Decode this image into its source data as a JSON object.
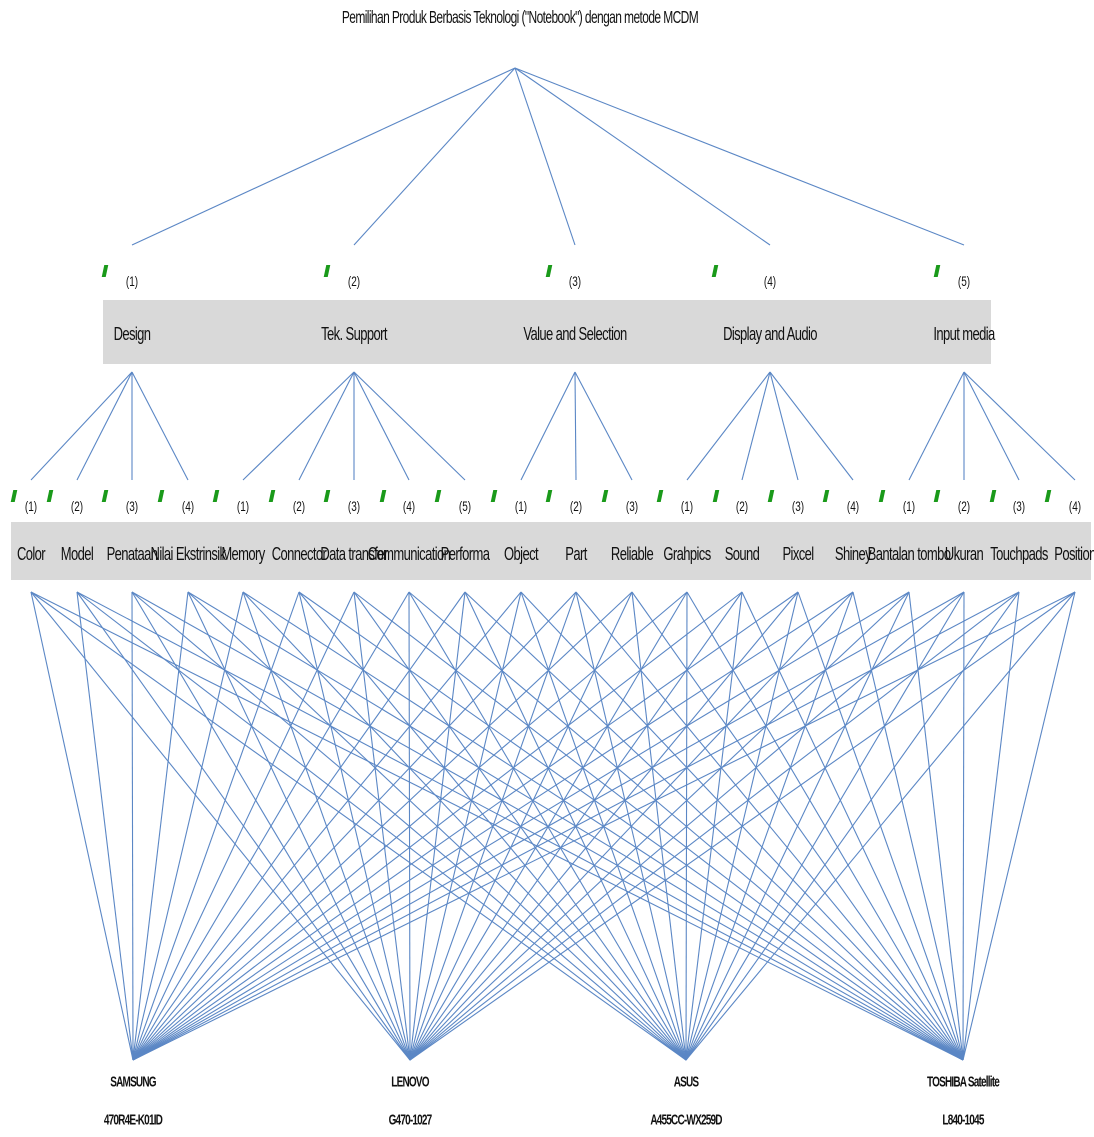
{
  "title": "Pemilihan Produk Berbasis Teknologi (\"Notebook\") dengan metode MCDM",
  "criteria": [
    {
      "num": "(1)",
      "label": "Design",
      "sub": [
        {
          "num": "(1)",
          "label": "Color"
        },
        {
          "num": "(2)",
          "label": "Model"
        },
        {
          "num": "(3)",
          "label": "Penataan"
        },
        {
          "num": "(4)",
          "label": "Nilai Ekstrinsik"
        }
      ]
    },
    {
      "num": "(2)",
      "label": "Tek. Support",
      "sub": [
        {
          "num": "(1)",
          "label": "Memory"
        },
        {
          "num": "(2)",
          "label": "Connector"
        },
        {
          "num": "(3)",
          "label": "Data transfer"
        },
        {
          "num": "(4)",
          "label": "Communication"
        },
        {
          "num": "(5)",
          "label": "Performa"
        }
      ]
    },
    {
      "num": "(3)",
      "label": "Value and Selection",
      "sub": [
        {
          "num": "(1)",
          "label": "Object"
        },
        {
          "num": "(2)",
          "label": "Part"
        },
        {
          "num": "(3)",
          "label": "Reliable"
        }
      ]
    },
    {
      "num": "(4)",
      "label": "Display and Audio",
      "sub": [
        {
          "num": "(1)",
          "label": "Grahpics"
        },
        {
          "num": "(2)",
          "label": "Sound"
        },
        {
          "num": "(3)",
          "label": "Pixcel"
        },
        {
          "num": "(4)",
          "label": "Shiney"
        }
      ]
    },
    {
      "num": "(5)",
      "label": "Input media",
      "sub": [
        {
          "num": "(1)",
          "label": "Bantalan tombo"
        },
        {
          "num": "(2)",
          "label": "Ukuran"
        },
        {
          "num": "(3)",
          "label": "Touchpads"
        },
        {
          "num": "(4)",
          "label": "Position"
        }
      ]
    }
  ],
  "alternatives": [
    {
      "brand": "SAMSUNG",
      "model": "470R4E-K01ID"
    },
    {
      "brand": "LENOVO",
      "model": "G470-1027"
    },
    {
      "brand": "ASUS",
      "model": "A455CC-WX259D"
    },
    {
      "brand": "TOSHIBA Satellite",
      "model": "L840-1045"
    }
  ],
  "colors": {
    "edge": "#5b87c5",
    "band": "#d9d9d9",
    "marker": "#1a9a1a"
  }
}
